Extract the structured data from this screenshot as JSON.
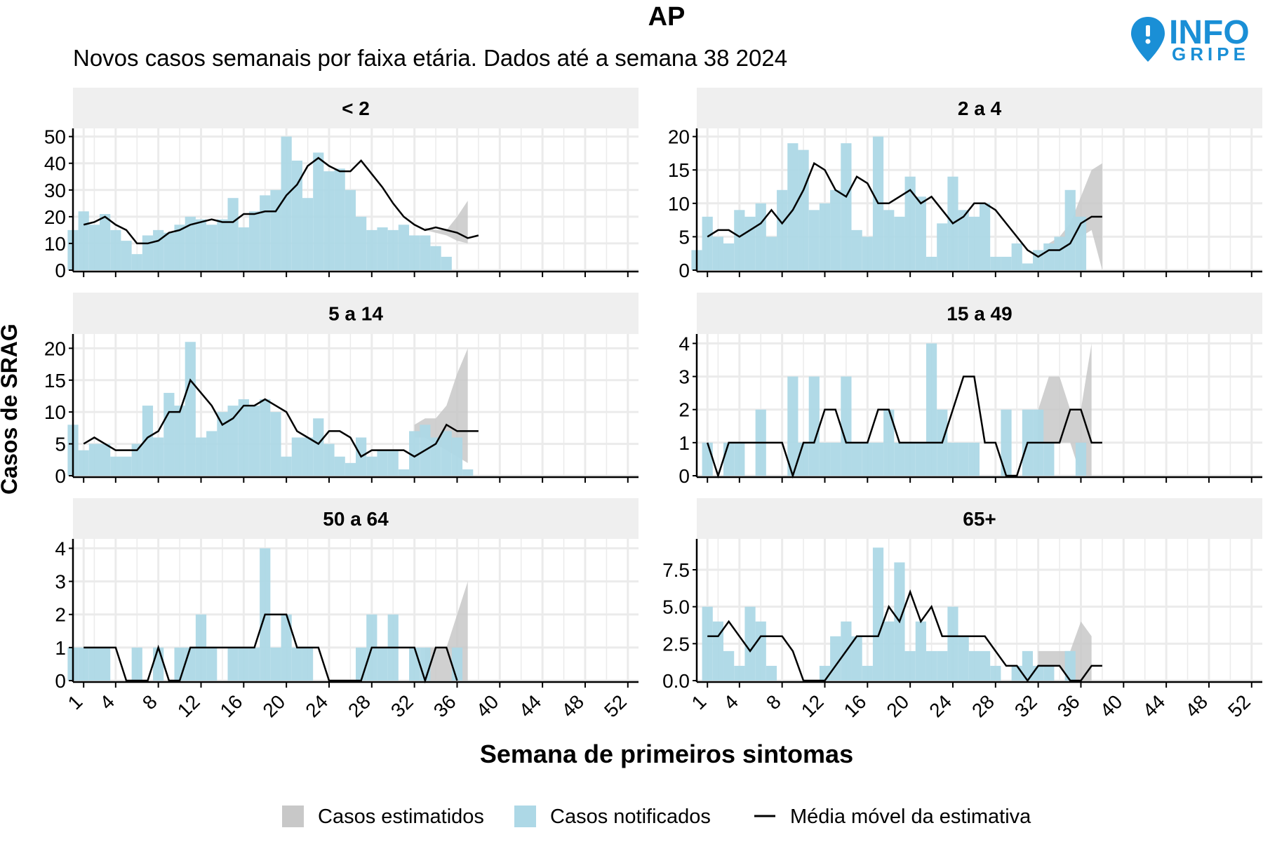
{
  "title": "AP",
  "subtitle": "Novos casos semanais por faixa etária. Dados até a semana 38 2024",
  "logo": {
    "line1": "INFO",
    "line2": "GRIPE",
    "color": "#1a8fd6",
    "icon": "map-pin-icon"
  },
  "colors": {
    "notified": "#add8e6",
    "estimated": "#c8c8c8",
    "moving_avg": "#000000",
    "strip": "#efefef",
    "grid": "#ebebeb"
  },
  "chart_data": {
    "type": "bar",
    "xlabel": "Semana de primeiros sintomas",
    "ylabel": "Casos de SRAG",
    "x_ticks": [
      1,
      4,
      8,
      12,
      16,
      20,
      24,
      28,
      32,
      36,
      40,
      44,
      48,
      52
    ],
    "x_range": [
      0,
      53
    ],
    "legend": {
      "position": "bottom",
      "items": [
        {
          "key": "estimated",
          "label": "Casos estimatidos"
        },
        {
          "key": "notified",
          "label": "Casos notificados"
        },
        {
          "key": "moving_avg",
          "label": "Média móvel da estimativa"
        }
      ]
    },
    "panels": [
      {
        "label": "< 2",
        "y_ticks": [
          "0",
          "10",
          "20",
          "30",
          "40",
          "50"
        ],
        "y_tick_values": [
          0,
          10,
          20,
          30,
          40,
          50
        ],
        "y_max": 52,
        "weeks_start": 0,
        "notified": [
          15,
          22,
          17,
          21,
          15,
          11,
          6,
          13,
          15,
          14,
          17,
          20,
          19,
          17,
          19,
          27,
          16,
          22,
          28,
          30,
          50,
          41,
          27,
          44,
          37,
          38,
          30,
          20,
          15,
          16,
          15,
          17,
          13,
          13,
          9,
          5
        ],
        "moving_avg": [
          17,
          18,
          20,
          17,
          15,
          10,
          10,
          11,
          14,
          15,
          17,
          18,
          19,
          18,
          18,
          21,
          21,
          22,
          22,
          28,
          32,
          39,
          42,
          39,
          37,
          37,
          41,
          36,
          31,
          25,
          20,
          17,
          15,
          16,
          15,
          14,
          12,
          13
        ],
        "ci_weeks": [
          33,
          34,
          35,
          36,
          37
        ],
        "ci_lower": [
          15,
          14,
          13,
          11,
          10
        ],
        "ci_upper": [
          16,
          15,
          15,
          20,
          26
        ]
      },
      {
        "label": "2 a 4",
        "y_ticks": [
          "0",
          "5",
          "10",
          "15",
          "20"
        ],
        "y_tick_values": [
          0,
          5,
          10,
          15,
          20
        ],
        "y_max": 20.8,
        "weeks_start": 0,
        "notified": [
          3,
          8,
          5,
          4,
          9,
          8,
          10,
          5,
          12,
          19,
          18,
          9,
          10,
          12,
          19,
          6,
          5,
          20,
          9,
          8,
          14,
          11,
          2,
          7,
          14,
          9,
          8,
          10,
          2,
          2,
          4,
          1,
          3,
          4,
          5,
          12,
          8
        ],
        "moving_avg": [
          5,
          6,
          6,
          5,
          6,
          7,
          9,
          7,
          9,
          12,
          16,
          15,
          12,
          11,
          14,
          13,
          10,
          10,
          11,
          12,
          10,
          11,
          9,
          7,
          8,
          10,
          10,
          9,
          7,
          5,
          3,
          2,
          3,
          3,
          4,
          7,
          8,
          8
        ],
        "ci_weeks": [
          33,
          34,
          35,
          36,
          37,
          38
        ],
        "ci_lower": [
          3,
          3,
          4,
          5,
          6,
          0
        ],
        "ci_upper": [
          4,
          5,
          7,
          11,
          15,
          16
        ]
      },
      {
        "label": "5 a 14",
        "y_ticks": [
          "0",
          "5",
          "10",
          "15",
          "20"
        ],
        "y_tick_values": [
          0,
          5,
          10,
          15,
          20
        ],
        "y_max": 21.8,
        "weeks_start": 0,
        "notified": [
          8,
          4,
          5,
          5,
          3,
          3,
          5,
          11,
          6,
          13,
          11,
          21,
          6,
          7,
          10,
          11,
          12,
          11,
          12,
          10,
          3,
          6,
          6,
          9,
          5,
          3,
          2,
          6,
          3,
          4,
          4,
          1,
          7,
          8,
          6,
          7,
          6,
          1
        ],
        "moving_avg": [
          5,
          6,
          5,
          4,
          4,
          4,
          6,
          7,
          10,
          10,
          15,
          13,
          11,
          8,
          9,
          11,
          11,
          12,
          11,
          10,
          7,
          6,
          5,
          7,
          7,
          6,
          3,
          4,
          4,
          4,
          4,
          3,
          4,
          5,
          8,
          7,
          7,
          7
        ],
        "ci_weeks": [
          32,
          33,
          34,
          35,
          36,
          37
        ],
        "ci_lower": [
          6,
          6,
          5,
          4,
          3,
          2
        ],
        "ci_upper": [
          8,
          9,
          9,
          11,
          16,
          20
        ]
      },
      {
        "label": "15 a 49",
        "y_ticks": [
          "0",
          "1",
          "2",
          "3",
          "4"
        ],
        "y_tick_values": [
          0,
          1,
          2,
          3,
          4
        ],
        "y_max": 4.2,
        "weeks_start": 0,
        "notified": [
          0,
          1,
          0,
          1,
          1,
          0,
          2,
          0,
          0,
          3,
          1,
          3,
          1,
          1,
          3,
          1,
          1,
          1,
          2,
          1,
          1,
          1,
          4,
          2,
          1,
          1,
          1,
          0,
          0,
          2,
          0,
          2,
          2,
          1,
          0,
          0,
          1,
          0
        ],
        "moving_avg": [
          1,
          0,
          1,
          1,
          1,
          1,
          1,
          1,
          0,
          1,
          1,
          2,
          2,
          1,
          1,
          1,
          2,
          2,
          1,
          1,
          1,
          1,
          1,
          2,
          3,
          3,
          1,
          1,
          0,
          0,
          1,
          1,
          1,
          1,
          2,
          2,
          1,
          1
        ],
        "ci_weeks": [
          32,
          33,
          34,
          35,
          36,
          37
        ],
        "ci_lower": [
          1,
          1,
          1,
          1,
          0,
          0
        ],
        "ci_upper": [
          2,
          3,
          3,
          2,
          2,
          4
        ]
      },
      {
        "label": "50 a 64",
        "y_ticks": [
          "0",
          "1",
          "2",
          "3",
          "4"
        ],
        "y_tick_values": [
          0,
          1,
          2,
          3,
          4
        ],
        "y_max": 4.2,
        "weeks_start": 0,
        "notified": [
          1,
          1,
          1,
          1,
          0,
          0,
          1,
          0,
          1,
          0,
          1,
          1,
          2,
          1,
          0,
          1,
          1,
          1,
          4,
          1,
          2,
          1,
          1,
          0,
          0,
          0,
          0,
          1,
          2,
          1,
          2,
          0,
          1,
          1,
          0,
          0,
          1,
          0
        ],
        "moving_avg": [
          1,
          1,
          1,
          1,
          0,
          0,
          0,
          1,
          0,
          0,
          1,
          1,
          1,
          1,
          1,
          1,
          1,
          2,
          2,
          2,
          1,
          1,
          1,
          0,
          0,
          0,
          0,
          1,
          1,
          1,
          1,
          1,
          0,
          1,
          1,
          0
        ],
        "ci_weeks": [
          33,
          34,
          35,
          36,
          37
        ],
        "ci_lower": [
          0,
          0,
          0,
          0,
          0
        ],
        "ci_upper": [
          1,
          1,
          1,
          2,
          3
        ]
      },
      {
        "label": "65+",
        "y_ticks": [
          "0.0",
          "2.5",
          "5.0",
          "7.5"
        ],
        "y_tick_values": [
          0,
          2.5,
          5,
          7.5
        ],
        "y_max": 9.4,
        "weeks_start": 0,
        "notified": [
          0,
          5,
          4,
          2,
          1,
          5,
          4,
          1,
          0,
          0,
          0,
          0,
          1,
          3,
          4,
          3,
          1,
          9,
          4,
          8,
          2,
          4,
          2,
          2,
          5,
          3,
          2,
          2,
          1,
          0,
          1,
          2,
          1,
          1,
          0,
          2,
          0
        ],
        "moving_avg": [
          3,
          3,
          4,
          3,
          2,
          3,
          3,
          3,
          2,
          0,
          0,
          0,
          1,
          2,
          3,
          3,
          3,
          5,
          4,
          6,
          4,
          5,
          3,
          3,
          3,
          3,
          3,
          2,
          1,
          1,
          0,
          1,
          1,
          1,
          0,
          0,
          1,
          1
        ],
        "ci_weeks": [
          32,
          33,
          34,
          35,
          36,
          37
        ],
        "ci_lower": [
          1,
          1,
          1,
          0,
          0,
          0
        ],
        "ci_upper": [
          2,
          2,
          2,
          2,
          4,
          3
        ]
      }
    ]
  }
}
